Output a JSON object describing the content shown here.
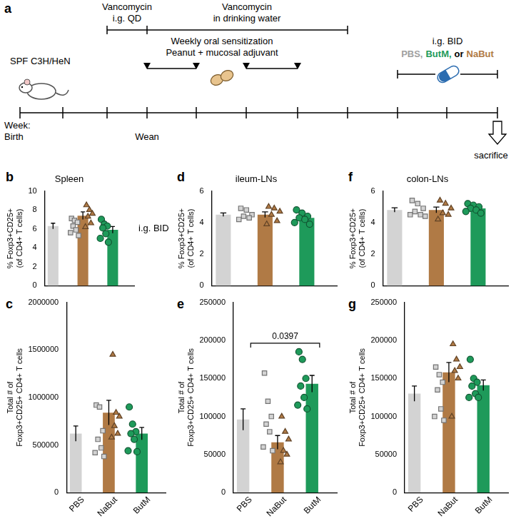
{
  "timeline": {
    "panel": "a",
    "strain": "SPF C3H/HeN",
    "axis_label": [
      "Week:",
      "Birth"
    ],
    "wean": "Wean",
    "vancomycin_gavage": [
      "Vancomycin",
      "i.g. QD"
    ],
    "vancomycin_water": [
      "Vancomycin",
      "in drinking water"
    ],
    "sensitization": [
      "Weekly oral sensitization",
      "Peanut + mucosal adjuvant"
    ],
    "treatment_route": "i.g. BID",
    "treatments": [
      {
        "text": "PBS,",
        "color": "#a0a0a0"
      },
      {
        "text": "ButM,",
        "color": "#1e9a5a"
      },
      {
        "text": "or",
        "color": "#000000"
      },
      {
        "text": "NaBut",
        "color": "#b07a45"
      }
    ],
    "endpoint": "sacrifice"
  },
  "chart_data": [
    {
      "panel": "b",
      "type": "bar",
      "title": "Spleen",
      "y_label": [
        "% Foxp3+CD25+",
        "(of CD4+ T cells)"
      ],
      "categories": [
        "PBS",
        "NaBut",
        "ButM"
      ],
      "colors": [
        "#d3d3d3",
        "#b07a45",
        "#1e9a5a"
      ],
      "marker": [
        "square",
        "triangle",
        "circle"
      ],
      "values": [
        6.3,
        7.4,
        5.9
      ],
      "errors": [
        0.3,
        0.4,
        0.35
      ],
      "points": [
        [
          7.1,
          6.9,
          6.7,
          6.3,
          5.9,
          5.6,
          5.3
        ],
        [
          8.5,
          8.0,
          7.6,
          7.3,
          6.6,
          6.2
        ],
        [
          7.0,
          6.5,
          6.3,
          6.1,
          5.5,
          5.0,
          4.6
        ]
      ],
      "ylim": [
        0,
        10
      ],
      "yticks": [
        0,
        2,
        4,
        6,
        8,
        10
      ],
      "grid": false,
      "tick_labels": "y",
      "annotations": [
        "i.g. BID"
      ]
    },
    {
      "panel": "c",
      "type": "bar",
      "y_label": [
        "Total # of",
        "Foxp3+CD25+ CD4+ T cells"
      ],
      "categories": [
        "PBS",
        "NaBut",
        "ButM"
      ],
      "colors": [
        "#d3d3d3",
        "#b07a45",
        "#1e9a5a"
      ],
      "marker": [
        "square",
        "triangle",
        "circle"
      ],
      "values": [
        620000,
        840000,
        620000
      ],
      "errors": [
        80000,
        130000,
        65000
      ],
      "points": [
        [
          920000,
          900000,
          650000,
          560000,
          470000,
          420000,
          380000
        ],
        [
          1450000,
          840000,
          800000,
          700000,
          620000,
          580000
        ],
        [
          900000,
          720000,
          640000,
          620000,
          560000,
          440000,
          430000
        ]
      ],
      "ylim": [
        0,
        2000000
      ],
      "yticks": [
        0,
        500000,
        1000000,
        1500000,
        2000000
      ],
      "grid": false
    },
    {
      "panel": "d",
      "type": "bar",
      "title": "ileum-LNs",
      "y_label": [
        "% Foxp3+CD25+",
        "(of CD4+ T cells)"
      ],
      "categories": [
        "PBS",
        "NaBut",
        "ButM"
      ],
      "colors": [
        "#d3d3d3",
        "#b07a45",
        "#1e9a5a"
      ],
      "marker": [
        "square",
        "triangle",
        "circle"
      ],
      "values": [
        4.5,
        4.5,
        4.3
      ],
      "errors": [
        0.11,
        0.18,
        0.12
      ],
      "points": [
        [
          4.9,
          4.8,
          4.5,
          4.4,
          4.3,
          4.2
        ],
        [
          5.0,
          4.9,
          4.7,
          4.5,
          4.1,
          3.9
        ],
        [
          4.8,
          4.6,
          4.4,
          4.3,
          4.2,
          4.0,
          3.9
        ]
      ],
      "ylim": [
        0,
        6
      ],
      "yticks": [
        0,
        2,
        4,
        6
      ],
      "grid": false,
      "tick_labels": "y"
    },
    {
      "panel": "e",
      "type": "bar",
      "y_label": [
        "Total # of",
        "Foxp3+CD25+ CD4+ T cells"
      ],
      "categories": [
        "PBS",
        "NaBut",
        "ButM"
      ],
      "colors": [
        "#d3d3d3",
        "#b07a45",
        "#1e9a5a"
      ],
      "marker": [
        "square",
        "triangle",
        "circle"
      ],
      "values": [
        96000,
        66000,
        143000
      ],
      "errors": [
        14000,
        9000,
        11000
      ],
      "points": [
        [
          157000,
          120000,
          100000,
          90000,
          80000,
          60000,
          55000
        ],
        [
          100000,
          80000,
          70000,
          55000,
          50000,
          40000
        ],
        [
          185000,
          175000,
          150000,
          140000,
          125000,
          115000,
          110000
        ]
      ],
      "ylim": [
        0,
        250000
      ],
      "yticks": [
        0,
        50000,
        100000,
        150000,
        200000,
        250000
      ],
      "grid": false,
      "comparisons": [
        {
          "categories": [
            "PBS",
            "ButM"
          ],
          "label": "0.0397"
        }
      ]
    },
    {
      "panel": "f",
      "type": "bar",
      "title": "colon-LNs",
      "y_label": [
        "% Foxp3+CD25+",
        "(of CD4+ T cells)"
      ],
      "categories": [
        "PBS",
        "NaBut",
        "ButM"
      ],
      "colors": [
        "#d3d3d3",
        "#b07a45",
        "#1e9a5a"
      ],
      "marker": [
        "square",
        "triangle",
        "circle"
      ],
      "values": [
        4.8,
        4.8,
        4.9
      ],
      "errors": [
        0.14,
        0.18,
        0.08
      ],
      "points": [
        [
          5.4,
          5.2,
          4.9,
          4.7,
          4.5,
          4.5,
          4.4
        ],
        [
          5.4,
          5.2,
          4.9,
          4.6,
          4.5,
          4.2
        ],
        [
          5.2,
          5.1,
          5.0,
          4.9,
          4.8,
          4.7,
          4.6
        ]
      ],
      "ylim": [
        0,
        6
      ],
      "yticks": [
        0,
        2,
        4,
        6
      ],
      "grid": false,
      "tick_labels": "y"
    },
    {
      "panel": "g",
      "type": "bar",
      "y_label": [
        "Total # of",
        "Foxp3+CD25+ CD4+ T cells"
      ],
      "categories": [
        "PBS",
        "NaBut",
        "ButM"
      ],
      "colors": [
        "#d3d3d3",
        "#b07a45",
        "#1e9a5a"
      ],
      "marker": [
        "square",
        "triangle",
        "circle"
      ],
      "values": [
        130000,
        158000,
        141000
      ],
      "errors": [
        10000,
        13000,
        7000
      ],
      "points": [
        [
          165000,
          155000,
          145000,
          135000,
          110000,
          100000,
          95000
        ],
        [
          195000,
          175000,
          165000,
          160000,
          150000,
          100000
        ],
        [
          175000,
          150000,
          145000,
          140000,
          130000,
          125000,
          125000
        ]
      ],
      "ylim": [
        0,
        250000
      ],
      "yticks": [
        0,
        50000,
        100000,
        150000,
        200000,
        250000
      ],
      "grid": false
    }
  ]
}
